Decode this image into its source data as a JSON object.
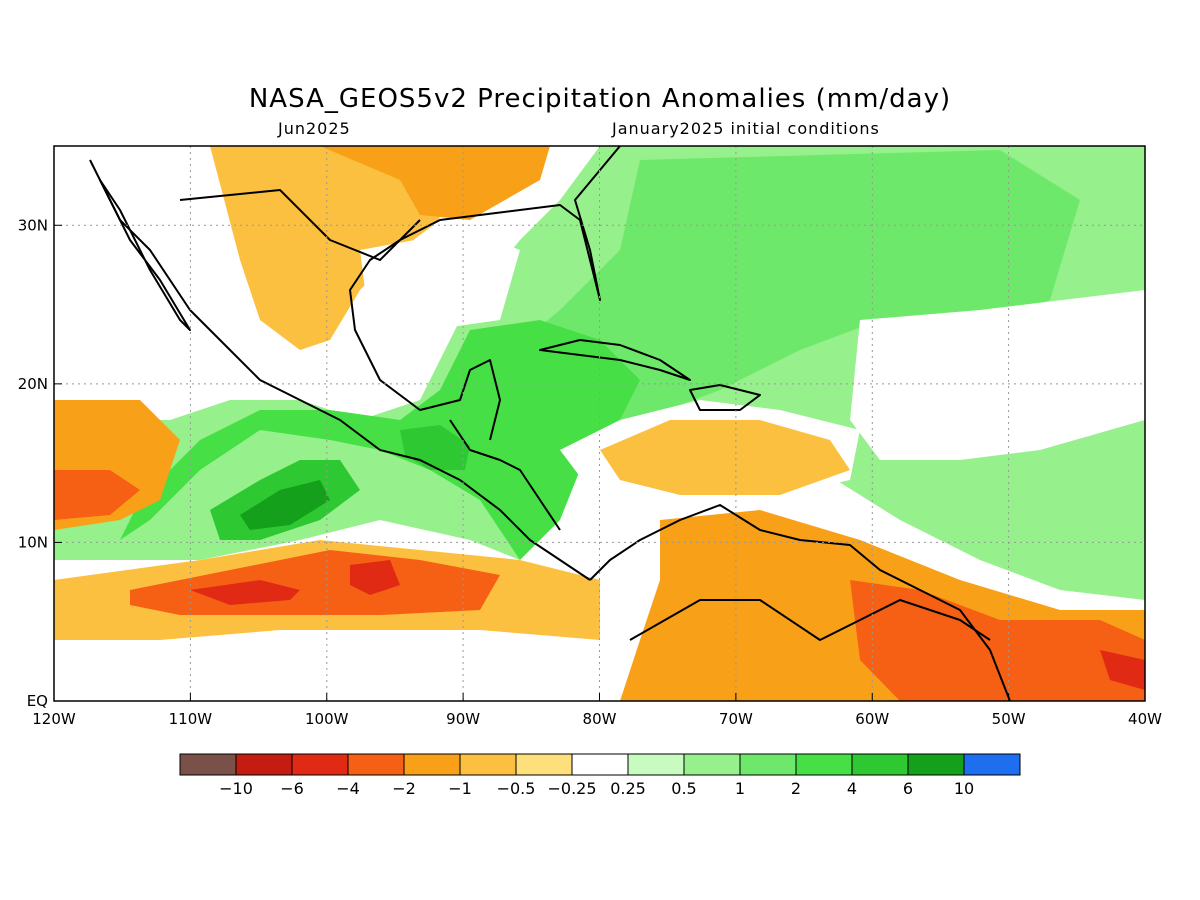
{
  "title": "NASA_GEOS5v2 Precipitation Anomalies (mm/day)",
  "subtitle_left": "Jun2025",
  "subtitle_right": "January2025 initial conditions",
  "map": {
    "lon_range": [
      -120,
      -40
    ],
    "lat_range": [
      0,
      35
    ],
    "lon_ticks": [
      {
        "lon": -120,
        "label": "120W"
      },
      {
        "lon": -110,
        "label": "110W"
      },
      {
        "lon": -100,
        "label": "100W"
      },
      {
        "lon": -90,
        "label": "90W"
      },
      {
        "lon": -80,
        "label": "80W"
      },
      {
        "lon": -70,
        "label": "70W"
      },
      {
        "lon": -60,
        "label": "60W"
      },
      {
        "lon": -50,
        "label": "50W"
      },
      {
        "lon": -40,
        "label": "40W"
      }
    ],
    "lat_ticks": [
      {
        "lat": 0,
        "label": "EQ"
      },
      {
        "lat": 10,
        "label": "10N"
      },
      {
        "lat": 20,
        "label": "20N"
      },
      {
        "lat": 30,
        "label": "30N"
      }
    ],
    "grid": true
  },
  "colorbar": {
    "colors": [
      "#7a5148",
      "#c41c10",
      "#e02a14",
      "#f56014",
      "#f8a018",
      "#fcc040",
      "#fde07c",
      "#ffffff",
      "#c8fbc0",
      "#96f08c",
      "#6ee86a",
      "#46e046",
      "#2ec832",
      "#14a01a",
      "#1e6ef0"
    ],
    "labels": [
      "−10",
      "−6",
      "−4",
      "−2",
      "−1",
      "−0.5",
      "−0.25",
      "0.25",
      "0.5",
      "1",
      "2",
      "4",
      "6",
      "10"
    ]
  }
}
